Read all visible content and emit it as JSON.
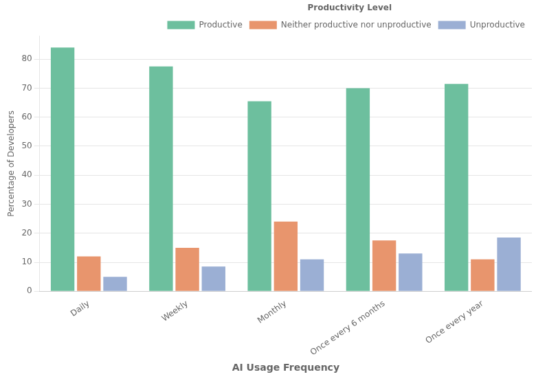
{
  "chart_data": {
    "type": "bar",
    "categories": [
      "Daily",
      "Weekly",
      "Monthly",
      "Once every 6 months",
      "Once every year"
    ],
    "series": [
      {
        "name": "Productive",
        "color": "#6dbf9e",
        "values": [
          84,
          77.5,
          65.5,
          70,
          71.5
        ]
      },
      {
        "name": "Neither productive nor unproductive",
        "color": "#e8956d",
        "values": [
          12,
          15,
          24,
          17.5,
          11
        ]
      },
      {
        "name": "Unproductive",
        "color": "#9bafd4",
        "values": [
          5,
          8.5,
          11,
          13,
          18.5
        ]
      }
    ],
    "xlabel": "AI Usage Frequency",
    "ylabel": "Percentage of Developers",
    "ylim": [
      0,
      88
    ],
    "yticks": [
      0,
      10,
      20,
      30,
      40,
      50,
      60,
      70,
      80
    ],
    "grid": true,
    "legend": "upper right",
    "legend_title": "Productivity Level"
  }
}
